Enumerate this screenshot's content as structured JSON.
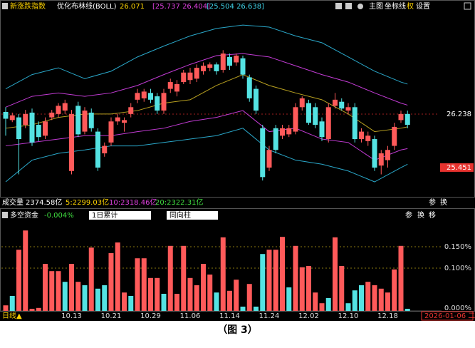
{
  "header": {
    "indicator": "新涨跌指数",
    "boll_name": "优化布林线(BOLL)",
    "boll_mid": "26.071",
    "boll_band1": "[25.737 26.404]",
    "boll_band2": "[25.504 26.638]",
    "buttons": [
      "主图",
      "坐标线",
      "权",
      "设置"
    ]
  },
  "volume_row": {
    "label": "成交量",
    "total": "2374.58亿",
    "ma5": "5:2299.03亿",
    "ma10": "10:2318.46亿",
    "ma20": "20:2322.31亿",
    "buttons": [
      "参",
      "换"
    ]
  },
  "flow_header": {
    "title": "多空资金",
    "value": "-0.004%",
    "dropdowns": [
      "1日累计",
      "同向柱"
    ],
    "buttons": [
      "参",
      "换",
      "移"
    ]
  },
  "footer": {
    "period": "日线▲",
    "date": "2026-01-06 二"
  },
  "caption": "（图 3）",
  "chart_data": [
    {
      "type": "candlestick",
      "up_color": "#ff5a5a",
      "down_color": "#54e3e3",
      "open": [
        26.27,
        26.15,
        26.19,
        26.08,
        26.26,
        26.08,
        25.92,
        26.19,
        26.24,
        26.29,
        25.4,
        26.36,
        25.98,
        26.26,
        25.98,
        25.66,
        25.82,
        26.13,
        26.11,
        26.24,
        26.45,
        26.47,
        26.55,
        26.5,
        26.29,
        26.61,
        26.57,
        26.71,
        26.74,
        26.76,
        26.87,
        26.92,
        26.97,
        26.89,
        27.08,
        27.0,
        27.06,
        26.78,
        26.61,
        26.03,
        25.45,
        26.03,
        25.92,
        25.94,
        25.98,
        26.34,
        26.4,
        26.34,
        26.13,
        25.87,
        26.36,
        26.42,
        26.29,
        26.34,
        25.87,
        25.84,
        25.87,
        25.48,
        25.56,
        25.77,
        26.15,
        26.24
      ],
      "high": [
        26.34,
        26.26,
        26.24,
        26.3,
        26.32,
        26.13,
        26.19,
        26.3,
        26.4,
        26.45,
        26.3,
        26.42,
        26.34,
        26.32,
        26.03,
        25.82,
        26.19,
        26.24,
        26.19,
        26.4,
        26.61,
        26.61,
        26.61,
        26.55,
        26.61,
        26.76,
        26.74,
        26.89,
        26.92,
        26.97,
        27.0,
        27.0,
        27.0,
        27.18,
        27.13,
        27.13,
        27.1,
        26.82,
        26.66,
        26.08,
        25.77,
        26.08,
        26.08,
        26.08,
        26.4,
        26.5,
        26.45,
        26.4,
        26.19,
        26.4,
        26.55,
        26.47,
        26.4,
        26.4,
        26.03,
        25.98,
        25.92,
        25.71,
        25.77,
        26.11,
        26.29,
        26.29
      ],
      "low": [
        25.92,
        26.12,
        25.35,
        26.03,
        25.77,
        25.84,
        25.87,
        26.15,
        26.19,
        26.24,
        25.35,
        25.9,
        25.94,
        25.98,
        25.4,
        25.61,
        25.77,
        26.08,
        25.98,
        26.19,
        26.4,
        26.42,
        26.4,
        26.24,
        26.24,
        26.55,
        26.5,
        26.68,
        26.68,
        26.71,
        26.82,
        26.87,
        26.82,
        26.85,
        26.89,
        26.95,
        26.76,
        26.42,
        26.24,
        25.26,
        25.4,
        25.66,
        25.87,
        25.9,
        25.94,
        26.29,
        26.08,
        26.03,
        25.84,
        25.82,
        26.32,
        26.29,
        26.24,
        25.82,
        25.82,
        25.77,
        25.4,
        25.35,
        25.45,
        25.71,
        26.11,
        26.03
      ],
      "close": [
        26.17,
        26.22,
        25.87,
        26.24,
        25.82,
        25.9,
        26.13,
        26.26,
        26.36,
        26.4,
        26.24,
        25.94,
        26.29,
        26.03,
        25.45,
        25.77,
        26.13,
        26.19,
        26.15,
        26.34,
        26.55,
        26.57,
        26.45,
        26.29,
        26.55,
        26.71,
        26.68,
        26.85,
        26.85,
        26.92,
        26.95,
        26.97,
        26.87,
        27.13,
        26.95,
        27.1,
        26.82,
        26.47,
        26.29,
        25.31,
        25.71,
        25.71,
        26.03,
        26.03,
        26.34,
        26.47,
        26.11,
        26.08,
        25.9,
        26.34,
        26.45,
        26.32,
        26.34,
        25.87,
        25.98,
        25.92,
        25.45,
        25.66,
        25.71,
        26.05,
        26.24,
        26.08
      ],
      "line_x": [
        0,
        4,
        8,
        12,
        16,
        20,
        24,
        28,
        32,
        36,
        40,
        44,
        48,
        52,
        56,
        60,
        61
      ],
      "lines": [
        {
          "color": "#2aa7c9",
          "values": [
            26.61,
            26.82,
            26.92,
            26.76,
            26.87,
            27.08,
            27.24,
            27.39,
            27.5,
            27.55,
            27.52,
            27.39,
            27.29,
            27.08,
            26.87,
            26.71,
            26.68
          ]
        },
        {
          "color": "#c23bd4",
          "values": [
            26.34,
            26.5,
            26.55,
            26.5,
            26.55,
            26.66,
            26.82,
            26.97,
            27.1,
            27.13,
            27.08,
            26.95,
            26.82,
            26.71,
            26.55,
            26.4,
            26.37
          ]
        },
        {
          "color": "#b8a020",
          "values": [
            26.03,
            26.08,
            26.19,
            26.24,
            26.24,
            26.29,
            26.4,
            26.45,
            26.66,
            26.82,
            26.66,
            26.55,
            26.45,
            26.24,
            25.98,
            26.03,
            26.05
          ]
        },
        {
          "color": "#c23bd4",
          "values": [
            25.77,
            25.82,
            25.87,
            25.92,
            25.92,
            25.98,
            26.03,
            26.13,
            26.19,
            26.29,
            25.98,
            26.03,
            25.87,
            25.82,
            25.56,
            25.71,
            25.73
          ]
        },
        {
          "color": "#2aa7c9",
          "values": [
            25.24,
            25.56,
            25.66,
            25.71,
            25.77,
            25.77,
            25.82,
            25.87,
            25.92,
            26.03,
            25.71,
            25.56,
            25.5,
            25.4,
            25.24,
            25.45,
            25.5
          ]
        }
      ],
      "ylim": [
        25.03,
        27.73
      ],
      "yticks": [
        26.238,
        25.451
      ]
    },
    {
      "type": "bar",
      "categories": [
        null,
        null,
        null,
        null,
        null,
        null,
        null,
        null,
        null,
        null,
        "10.13",
        null,
        null,
        null,
        null,
        null,
        "10.21",
        null,
        null,
        null,
        null,
        null,
        "10.29",
        null,
        null,
        null,
        null,
        null,
        "11.06",
        null,
        null,
        null,
        null,
        null,
        "11.14",
        null,
        null,
        null,
        null,
        null,
        "11.24",
        null,
        null,
        null,
        null,
        null,
        "12.02",
        null,
        null,
        null,
        null,
        null,
        "12.10",
        null,
        null,
        null,
        null,
        null,
        "12.18",
        null,
        null,
        null
      ],
      "values": [
        0.013,
        0.035,
        0.143,
        0.188,
        0.005,
        0.007,
        0.11,
        0.093,
        0.093,
        0.068,
        0.11,
        0.068,
        0.06,
        0.148,
        0.052,
        0.06,
        0.135,
        0.16,
        0.043,
        0.035,
        0.123,
        0.123,
        0.077,
        0.077,
        0.04,
        0.152,
        0.04,
        0.152,
        0.077,
        0.06,
        0.11,
        0.085,
        0.043,
        0.172,
        0.047,
        0.073,
        0.01,
        0.063,
        0.01,
        0.133,
        0.143,
        0.143,
        0.173,
        0.055,
        0.152,
        0.102,
        0.105,
        0.043,
        0.018,
        0.03,
        0.172,
        0.105,
        0.018,
        0.048,
        0.06,
        0.068,
        0.06,
        0.052,
        0.043,
        0.097,
        0.152,
        0.005
      ],
      "colors": [
        "#ff5a5a",
        "#54e3e3",
        "#ff5a5a",
        "#ff5a5a",
        "#ff5a5a",
        "#ff5a5a",
        "#ff5a5a",
        "#ff5a5a",
        "#ff5a5a",
        "#54e3e3",
        "#ff5a5a",
        "#ff5a5a",
        "#54e3e3",
        "#ff5a5a",
        "#54e3e3",
        "#54e3e3",
        "#ff5a5a",
        "#ff5a5a",
        "#ff5a5a",
        "#54e3e3",
        "#ff5a5a",
        "#ff5a5a",
        "#ff5a5a",
        "#ff5a5a",
        "#54e3e3",
        "#ff5a5a",
        "#ff5a5a",
        "#ff5a5a",
        "#ff5a5a",
        "#ff5a5a",
        "#ff5a5a",
        "#ff5a5a",
        "#54e3e3",
        "#ff5a5a",
        "#ff5a5a",
        "#ff5a5a",
        "#54e3e3",
        "#ff5a5a",
        "#54e3e3",
        "#54e3e3",
        "#ff5a5a",
        "#ff5a5a",
        "#ff5a5a",
        "#54e3e3",
        "#ff5a5a",
        "#ff5a5a",
        "#ff5a5a",
        "#ff5a5a",
        "#ff5a5a",
        "#54e3e3",
        "#ff5a5a",
        "#ff5a5a",
        "#54e3e3",
        "#54e3e3",
        "#54e3e3",
        "#ff5a5a",
        "#ff5a5a",
        "#ff5a5a",
        "#ff5a5a",
        "#ff5a5a",
        "#ff5a5a",
        "#54e3e3"
      ],
      "ylim": [
        0,
        0.2
      ],
      "yticks": [
        {
          "value": 0.15,
          "label": "0.150%"
        },
        {
          "value": 0.1,
          "label": "0.100%"
        },
        {
          "value": 0,
          "label": "0.000%"
        }
      ]
    }
  ]
}
